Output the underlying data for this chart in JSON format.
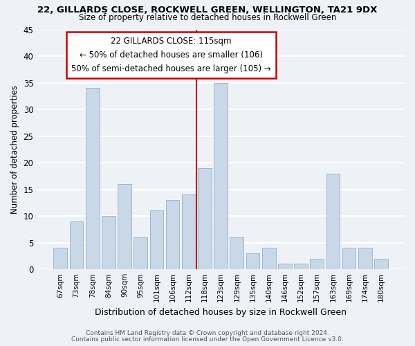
{
  "title": "22, GILLARDS CLOSE, ROCKWELL GREEN, WELLINGTON, TA21 9DX",
  "subtitle": "Size of property relative to detached houses in Rockwell Green",
  "xlabel": "Distribution of detached houses by size in Rockwell Green",
  "ylabel": "Number of detached properties",
  "footnote1": "Contains HM Land Registry data © Crown copyright and database right 2024.",
  "footnote2": "Contains public sector information licensed under the Open Government Licence v3.0.",
  "bar_labels": [
    "67sqm",
    "73sqm",
    "78sqm",
    "84sqm",
    "90sqm",
    "95sqm",
    "101sqm",
    "106sqm",
    "112sqm",
    "118sqm",
    "123sqm",
    "129sqm",
    "135sqm",
    "140sqm",
    "146sqm",
    "152sqm",
    "157sqm",
    "163sqm",
    "169sqm",
    "174sqm",
    "180sqm"
  ],
  "bar_values": [
    4,
    9,
    34,
    10,
    16,
    6,
    11,
    13,
    14,
    19,
    35,
    6,
    3,
    4,
    1,
    1,
    2,
    18,
    4,
    4,
    2
  ],
  "bar_color": "#c8d8e8",
  "bar_edge_color": "#a0b8cc",
  "ylim": [
    0,
    45
  ],
  "yticks": [
    0,
    5,
    10,
    15,
    20,
    25,
    30,
    35,
    40,
    45
  ],
  "vline_x": 8.5,
  "vline_color": "#cc0000",
  "annotation_line0": "22 GILLARDS CLOSE: 115sqm",
  "annotation_line1": "← 50% of detached houses are smaller (106)",
  "annotation_line2": "50% of semi-detached houses are larger (105) →",
  "annotation_box_color": "#ffffff",
  "annotation_box_edge": "#cc0000",
  "background_color": "#eef2f7",
  "grid_color": "#ffffff"
}
